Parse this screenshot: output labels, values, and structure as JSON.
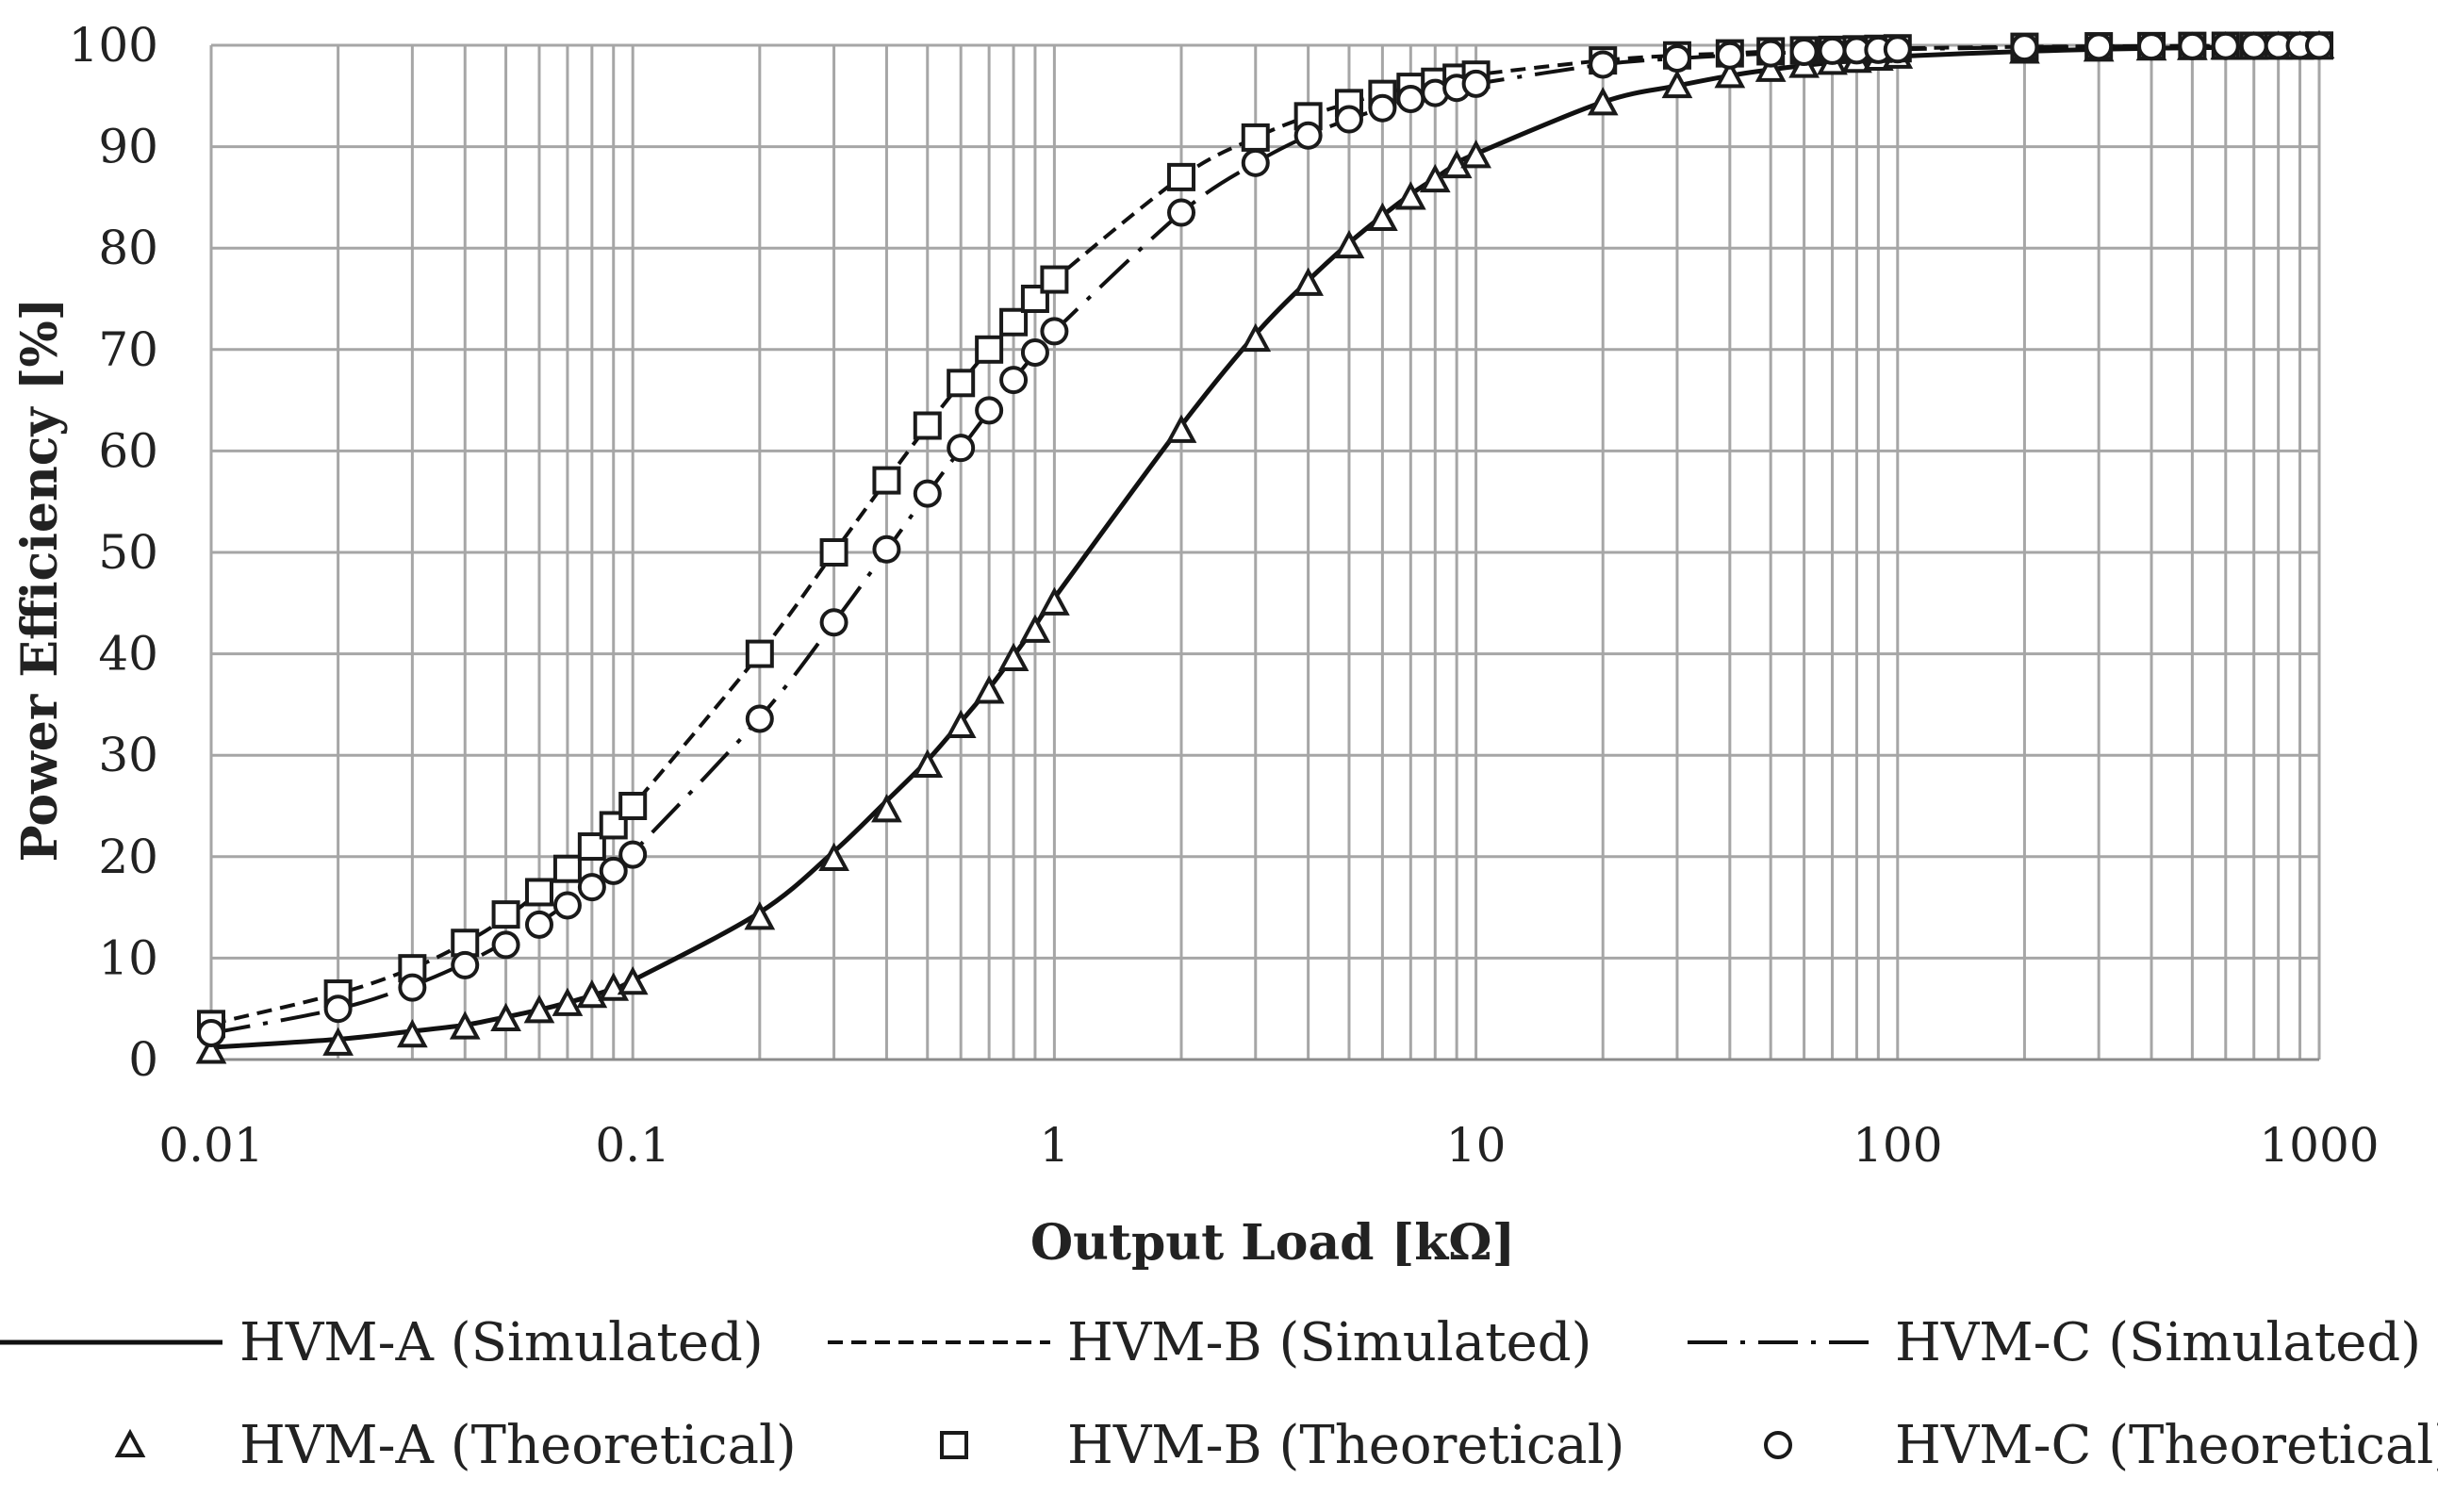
{
  "chart_data": {
    "type": "line",
    "xscale": "log",
    "xlabel": "Output Load [kΩ]",
    "ylabel": "Power Efficiency [%]",
    "xlim": [
      0.01,
      1000
    ],
    "ylim": [
      0,
      100
    ],
    "x_tick_labels": [
      "0.01",
      "0.1",
      "1",
      "10",
      "100",
      "1000"
    ],
    "y_tick_labels": [
      "0",
      "10",
      "20",
      "30",
      "40",
      "50",
      "60",
      "70",
      "80",
      "90",
      "100"
    ],
    "grid": true,
    "legend_position": "bottom",
    "x": [
      0.01,
      0.02,
      0.03,
      0.04,
      0.05,
      0.06,
      0.07,
      0.08,
      0.09,
      0.1,
      0.2,
      0.3,
      0.4,
      0.5,
      0.6,
      0.7,
      0.8,
      0.9,
      1,
      2,
      3,
      4,
      5,
      6,
      7,
      8,
      9,
      10,
      20,
      30,
      40,
      50,
      60,
      70,
      80,
      90,
      100,
      200,
      300,
      400,
      500,
      600,
      700,
      800,
      900,
      1000
    ],
    "series": [
      {
        "name": "HVM-A (Simulated)",
        "style": "solid",
        "values": [
          1.2,
          2.0,
          2.8,
          3.4,
          4.2,
          4.9,
          5.6,
          6.3,
          7.0,
          7.8,
          14.5,
          20.5,
          25.5,
          29.5,
          33.3,
          36.6,
          39.8,
          42.7,
          45.5,
          62.5,
          71.5,
          76.8,
          80.5,
          83.2,
          85.3,
          86.9,
          88.3,
          89.3,
          94.4,
          96.0,
          97.0,
          97.6,
          98.0,
          98.3,
          98.5,
          98.7,
          98.9,
          99.4,
          99.6,
          99.7,
          99.75,
          99.8,
          99.8,
          99.85,
          99.85,
          99.9
        ]
      },
      {
        "name": "HVM-B (Simulated)",
        "style": "dashed",
        "values": [
          3.5,
          6.5,
          9.0,
          11.5,
          14.0,
          16.5,
          18.8,
          21.0,
          23.1,
          25.0,
          40.0,
          50.0,
          57.1,
          62.5,
          66.7,
          70.0,
          72.7,
          75.0,
          76.9,
          87.0,
          90.9,
          93.0,
          94.3,
          95.2,
          95.9,
          96.4,
          96.8,
          97.1,
          98.5,
          99.0,
          99.2,
          99.4,
          99.5,
          99.55,
          99.6,
          99.65,
          99.7,
          99.85,
          99.9,
          99.92,
          99.94,
          99.95,
          99.95,
          99.96,
          99.96,
          99.97
        ]
      },
      {
        "name": "HVM-C (Simulated)",
        "style": "dash-dot",
        "values": [
          2.6,
          5.0,
          7.3,
          9.5,
          11.6,
          13.5,
          15.4,
          17.1,
          18.8,
          20.4,
          33.7,
          43.1,
          50.2,
          55.8,
          60.2,
          63.9,
          67.0,
          69.6,
          71.8,
          83.5,
          88.4,
          91.1,
          92.7,
          93.8,
          94.7,
          95.3,
          95.8,
          96.2,
          98.1,
          98.7,
          99.0,
          99.2,
          99.35,
          99.45,
          99.5,
          99.55,
          99.6,
          99.8,
          99.87,
          99.9,
          99.92,
          99.93,
          99.94,
          99.95,
          99.96,
          99.96
        ]
      },
      {
        "name": "HVM-A (Theoretical)",
        "marker": "triangle",
        "values": [
          0.8,
          1.6,
          2.4,
          3.2,
          4.0,
          4.8,
          5.5,
          6.3,
          7.0,
          7.6,
          14.0,
          19.8,
          24.6,
          29.0,
          32.9,
          36.3,
          39.5,
          42.3,
          45.0,
          62.0,
          71.0,
          76.5,
          80.2,
          82.9,
          85.0,
          86.7,
          88.1,
          89.1,
          94.3,
          96.0,
          97.0,
          97.6,
          98.0,
          98.3,
          98.5,
          98.7,
          98.9,
          99.4,
          99.6,
          99.7,
          99.75,
          99.8,
          99.8,
          99.85,
          99.85,
          99.9
        ]
      },
      {
        "name": "HVM-B (Theoretical)",
        "marker": "square",
        "values": [
          3.5,
          6.5,
          9.0,
          11.5,
          14.3,
          16.5,
          18.8,
          21.0,
          23.1,
          25.0,
          40.0,
          50.0,
          57.1,
          62.5,
          66.7,
          70.0,
          72.7,
          75.0,
          76.9,
          87.0,
          90.9,
          93.0,
          94.3,
          95.2,
          95.9,
          96.4,
          96.8,
          97.1,
          98.5,
          99.0,
          99.2,
          99.4,
          99.5,
          99.55,
          99.6,
          99.65,
          99.7,
          99.85,
          99.9,
          99.92,
          99.94,
          99.95,
          99.95,
          99.96,
          99.96,
          99.97
        ]
      },
      {
        "name": "HVM-C (Theoretical)",
        "marker": "circle",
        "values": [
          2.6,
          5.0,
          7.1,
          9.3,
          11.3,
          13.3,
          15.2,
          17.0,
          18.6,
          20.2,
          33.6,
          43.1,
          50.3,
          55.8,
          60.3,
          64.0,
          67.0,
          69.7,
          71.8,
          83.5,
          88.4,
          91.1,
          92.7,
          93.8,
          94.7,
          95.3,
          95.8,
          96.2,
          98.1,
          98.7,
          99.0,
          99.2,
          99.35,
          99.45,
          99.5,
          99.55,
          99.6,
          99.8,
          99.87,
          99.9,
          99.92,
          99.93,
          99.94,
          99.95,
          99.96,
          99.96
        ]
      }
    ]
  }
}
